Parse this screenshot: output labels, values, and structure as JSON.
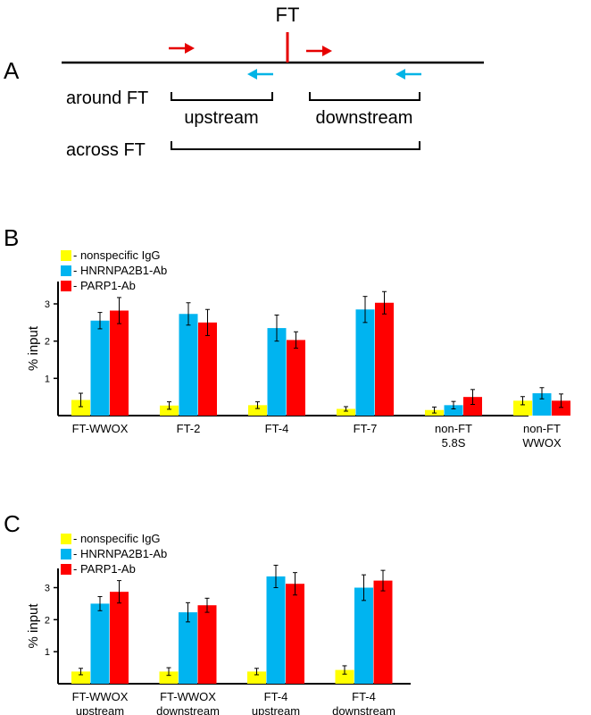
{
  "colors": {
    "igg": "#ffff00",
    "hnrnp": "#00b4f0",
    "parp": "#ff0000",
    "arrow_red": "#e60000",
    "arrow_cyan": "#00b4e6"
  },
  "panel_a": {
    "letter": "A",
    "ft_label": "FT",
    "around_label": "around FT",
    "upstream_label": "upstream",
    "downstream_label": "downstream",
    "across_label": "across FT"
  },
  "chart_data": [
    {
      "panel": "B",
      "type": "bar",
      "ylabel": "% input",
      "ylim": [
        0,
        3.6
      ],
      "yticks": [
        1,
        2,
        3
      ],
      "legend": [
        "- nonspecific IgG",
        "- HNRNPA2B1-Ab",
        "- PARP1-Ab"
      ],
      "categories": [
        [
          "FT-WWOX"
        ],
        [
          "FT-2"
        ],
        [
          "FT-4"
        ],
        [
          "FT-7"
        ],
        [
          "non-FT",
          "5.8S"
        ],
        [
          "non-FT",
          "WWOX"
        ]
      ],
      "series": [
        {
          "values": [
            0.42,
            0.27,
            0.28,
            0.18,
            0.15,
            0.4
          ],
          "errors": [
            0.18,
            0.1,
            0.09,
            0.06,
            0.08,
            0.11
          ]
        },
        {
          "values": [
            2.55,
            2.73,
            2.35,
            2.85,
            0.28,
            0.6
          ],
          "errors": [
            0.22,
            0.3,
            0.35,
            0.35,
            0.1,
            0.15
          ]
        },
        {
          "values": [
            2.82,
            2.5,
            2.03,
            3.03,
            0.5,
            0.4
          ],
          "errors": [
            0.35,
            0.35,
            0.22,
            0.3,
            0.2,
            0.18
          ]
        }
      ]
    },
    {
      "panel": "C",
      "type": "bar",
      "ylabel": "% input",
      "ylim": [
        0,
        3.6
      ],
      "yticks": [
        1,
        2,
        3
      ],
      "legend": [
        "- nonspecific IgG",
        "- HNRNPA2B1-Ab",
        "- PARP1-Ab"
      ],
      "categories": [
        [
          "FT-WWOX",
          "upstream"
        ],
        [
          "FT-WWOX",
          "downstream"
        ],
        [
          "FT-4",
          "upstream"
        ],
        [
          "FT-4",
          "downstream"
        ]
      ],
      "series": [
        {
          "values": [
            0.38,
            0.38,
            0.38,
            0.43
          ],
          "errors": [
            0.1,
            0.12,
            0.1,
            0.13
          ]
        },
        {
          "values": [
            2.5,
            2.23,
            3.35,
            3.0
          ],
          "errors": [
            0.22,
            0.3,
            0.35,
            0.4
          ]
        },
        {
          "values": [
            2.87,
            2.45,
            3.12,
            3.22
          ],
          "errors": [
            0.35,
            0.22,
            0.35,
            0.32
          ]
        }
      ]
    }
  ]
}
